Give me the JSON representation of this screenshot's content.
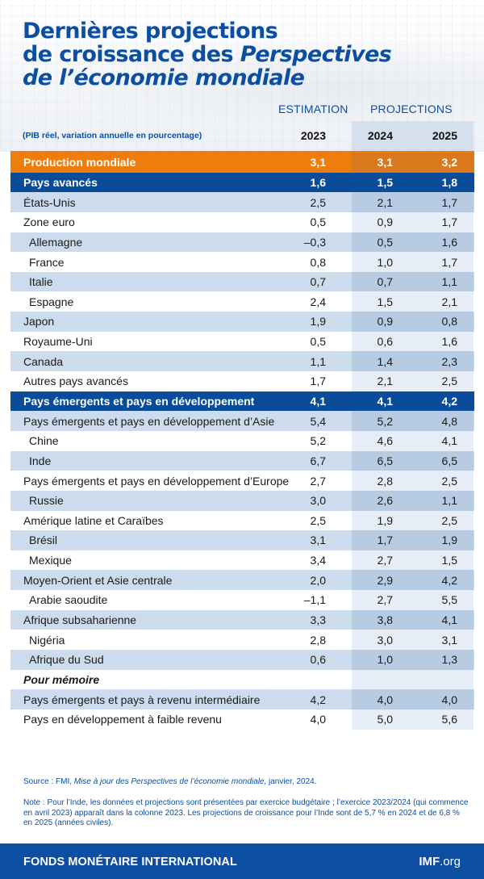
{
  "title": {
    "line1": "Dernières projections",
    "line2_regular": "de croissance des ",
    "line2_italic": "Perspectives",
    "line3_italic": "de l’économie mondiale"
  },
  "header": {
    "estimation_label": "ESTIMATION",
    "projections_label": "PROJECTIONS",
    "units": "(PIB réel, variation annuelle en pourcentage)",
    "years": [
      "2023",
      "2024",
      "2025"
    ]
  },
  "colors": {
    "brand_blue": "#0b4ea2",
    "orange": "#ee7d0e",
    "row_light": "#cddcec",
    "proj_light": "#b7cbe3",
    "proj_white": "#e6edf6"
  },
  "rows": [
    {
      "label": "Production mondiale",
      "values": [
        "3,1",
        "3,1",
        "3,2"
      ]
    },
    {
      "label": "Pays avancés",
      "values": [
        "1,6",
        "1,5",
        "1,8"
      ]
    },
    {
      "label": "États-Unis",
      "values": [
        "2,5",
        "2,1",
        "1,7"
      ]
    },
    {
      "label": "Zone euro",
      "values": [
        "0,5",
        "0,9",
        "1,7"
      ]
    },
    {
      "label": "Allemagne",
      "values": [
        "–0,3",
        "0,5",
        "1,6"
      ]
    },
    {
      "label": "France",
      "values": [
        "0,8",
        "1,0",
        "1,7"
      ]
    },
    {
      "label": "Italie",
      "values": [
        "0,7",
        "0,7",
        "1,1"
      ]
    },
    {
      "label": "Espagne",
      "values": [
        "2,4",
        "1,5",
        "2,1"
      ]
    },
    {
      "label": "Japon",
      "values": [
        "1,9",
        "0,9",
        "0,8"
      ]
    },
    {
      "label": "Royaume-Uni",
      "values": [
        "0,5",
        "0,6",
        "1,6"
      ]
    },
    {
      "label": "Canada",
      "values": [
        "1,1",
        "1,4",
        "2,3"
      ]
    },
    {
      "label": "Autres pays avancés",
      "values": [
        "1,7",
        "2,1",
        "2,5"
      ]
    },
    {
      "label": "Pays émergents et pays en développement",
      "values": [
        "4,1",
        "4,1",
        "4,2"
      ]
    },
    {
      "label": "Pays émergents et pays en développement d’Asie",
      "values": [
        "5,4",
        "5,2",
        "4,8"
      ]
    },
    {
      "label": "Chine",
      "values": [
        "5,2",
        "4,6",
        "4,1"
      ]
    },
    {
      "label": "Inde",
      "values": [
        "6,7",
        "6,5",
        "6,5"
      ]
    },
    {
      "label": "Pays émergents et pays en développement d’Europe",
      "values": [
        "2,7",
        "2,8",
        "2,5"
      ]
    },
    {
      "label": "Russie",
      "values": [
        "3,0",
        "2,6",
        "1,1"
      ]
    },
    {
      "label": "Amérique latine et Caraïbes",
      "values": [
        "2,5",
        "1,9",
        "2,5"
      ]
    },
    {
      "label": "Brésil",
      "values": [
        "3,1",
        "1,7",
        "1,9"
      ]
    },
    {
      "label": "Mexique",
      "values": [
        "3,4",
        "2,7",
        "1,5"
      ]
    },
    {
      "label": "Moyen-Orient et Asie centrale",
      "values": [
        "2,0",
        "2,9",
        "4,2"
      ]
    },
    {
      "label": "Arabie saoudite",
      "values": [
        "–1,1",
        "2,7",
        "5,5"
      ]
    },
    {
      "label": "Afrique subsaharienne",
      "values": [
        "3,3",
        "3,8",
        "4,1"
      ]
    },
    {
      "label": "Nigéria",
      "values": [
        "2,8",
        "3,0",
        "3,1"
      ]
    },
    {
      "label": "Afrique du Sud",
      "values": [
        "0,6",
        "1,0",
        "1,3"
      ]
    },
    {
      "label": "Pour mémoire",
      "values": [
        "",
        "",
        ""
      ]
    },
    {
      "label": "Pays émergents et pays à revenu intermédiaire",
      "values": [
        "4,2",
        "4,0",
        "4,0"
      ]
    },
    {
      "label": "Pays en développement à faible revenu",
      "values": [
        "4,0",
        "5,0",
        "5,6"
      ]
    }
  ],
  "source": {
    "prefix": "Source : FMI, ",
    "italic": "Mise à jour des Perspectives de l’économie mondiale,",
    "suffix": " janvier, 2024."
  },
  "note": "Note : Pour l’Inde, les données et projections sont présentées par exercice budgétaire ; l’exercice 2023/2024 (qui commence en avril 2023) apparaît dans la colonne 2023. Les projections de croissance pour l’Inde sont de 5,7 % en 2024 et de 6,8 % en 2025 (années civiles).",
  "footer": {
    "org": "FONDS MONÉTAIRE INTERNATIONAL",
    "link_bold": "IMF",
    "link_rest": ".org"
  }
}
